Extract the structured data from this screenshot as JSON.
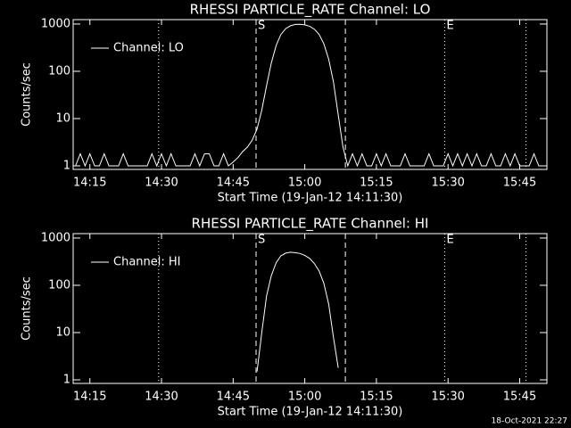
{
  "chart_data": [
    {
      "type": "line",
      "title": "RHESSI PARTICLE_RATE Channel: LO",
      "xlabel": "Start Time (19-Jan-12 14:11:30)",
      "ylabel": "Counts/sec",
      "log_y": true,
      "legend": "upper left",
      "xlim": [
        851.5,
        950.7
      ],
      "ylim": [
        0.84,
        1240
      ],
      "xticks": [
        {
          "value": 855,
          "label": "14:15"
        },
        {
          "value": 870,
          "label": "14:30"
        },
        {
          "value": 885,
          "label": "14:45"
        },
        {
          "value": 900,
          "label": "15:00"
        },
        {
          "value": 915,
          "label": "15:15"
        },
        {
          "value": 930,
          "label": "15:30"
        },
        {
          "value": 945,
          "label": "15:45"
        }
      ],
      "yticks": [
        1,
        10,
        100,
        1000
      ],
      "annotations": [
        {
          "x": 869.4,
          "style": "dotted"
        },
        {
          "x": 889.8,
          "style": "dashed",
          "label": "S"
        },
        {
          "x": 908.5,
          "style": "dashed"
        },
        {
          "x": 929.3,
          "style": "dotted",
          "label": "E"
        },
        {
          "x": 946.3,
          "style": "dotted"
        }
      ],
      "x": [
        852,
        853,
        854,
        855,
        856,
        857,
        858,
        859,
        860,
        861,
        862,
        863,
        864,
        865,
        866,
        867,
        868,
        869,
        870,
        871,
        872,
        873,
        874,
        875,
        876,
        877,
        878,
        879,
        880,
        881,
        882,
        883,
        884,
        885,
        886,
        887,
        888,
        889,
        890,
        891,
        892,
        893,
        894,
        895,
        896,
        897,
        898,
        899,
        900,
        901,
        902,
        903,
        904,
        905,
        906,
        907,
        908,
        909,
        910,
        911,
        912,
        913,
        914,
        915,
        916,
        917,
        918,
        919,
        920,
        921,
        922,
        923,
        924,
        925,
        926,
        927,
        928,
        929,
        930,
        931,
        932,
        933,
        934,
        935,
        936,
        937,
        938,
        939,
        940,
        941,
        942,
        943,
        944,
        945,
        946,
        947,
        948,
        949,
        950
      ],
      "series": [
        {
          "name": "Channel: LO",
          "color": "#ffffff",
          "values": [
            1,
            1.8,
            1,
            1.8,
            1,
            1,
            1.8,
            1,
            1,
            1,
            1.8,
            1,
            1,
            1,
            1,
            1,
            1.8,
            1,
            1.8,
            1,
            1.8,
            1,
            1,
            1,
            1,
            1.8,
            1,
            1.8,
            1.8,
            1,
            1,
            1.8,
            1,
            1.2,
            1.5,
            2,
            2.5,
            3.5,
            6,
            15,
            50,
            150,
            350,
            600,
            800,
            920,
            980,
            990,
            960,
            900,
            780,
            600,
            380,
            180,
            60,
            12,
            2.5,
            1,
            1.8,
            1,
            1.8,
            1,
            1,
            1.8,
            1,
            1.8,
            1,
            1,
            1,
            1.8,
            1,
            1,
            1,
            1,
            1.8,
            1,
            1,
            1,
            1.8,
            1,
            1.8,
            1,
            1.8,
            1,
            1.8,
            1,
            1,
            1.8,
            1,
            1,
            1.8,
            1,
            1.8,
            1,
            1,
            1,
            1.8,
            1,
            1
          ]
        }
      ]
    },
    {
      "type": "line",
      "title": "RHESSI PARTICLE_RATE Channel: HI",
      "xlabel": "Start Time (19-Jan-12 14:11:30)",
      "ylabel": "Counts/sec",
      "log_y": true,
      "legend": "upper left",
      "xlim": [
        851.5,
        950.7
      ],
      "ylim": [
        0.84,
        1240
      ],
      "xticks": [
        {
          "value": 855,
          "label": "14:15"
        },
        {
          "value": 870,
          "label": "14:30"
        },
        {
          "value": 885,
          "label": "14:45"
        },
        {
          "value": 900,
          "label": "15:00"
        },
        {
          "value": 915,
          "label": "15:15"
        },
        {
          "value": 930,
          "label": "15:30"
        },
        {
          "value": 945,
          "label": "15:45"
        }
      ],
      "yticks": [
        1,
        10,
        100,
        1000
      ],
      "annotations": [
        {
          "x": 869.4,
          "style": "dotted"
        },
        {
          "x": 889.8,
          "style": "dashed",
          "label": "S"
        },
        {
          "x": 908.5,
          "style": "dashed"
        },
        {
          "x": 929.3,
          "style": "dotted",
          "label": "E"
        },
        {
          "x": 946.3,
          "style": "dotted"
        }
      ],
      "x": [
        890,
        891,
        892,
        893,
        894,
        895,
        896,
        897,
        898,
        899,
        900,
        901,
        902,
        903,
        904,
        905,
        906,
        907
      ],
      "series": [
        {
          "name": "Channel: HI",
          "color": "#ffffff",
          "values": [
            1.5,
            10,
            60,
            160,
            300,
            420,
            480,
            500,
            490,
            470,
            430,
            370,
            290,
            200,
            110,
            40,
            8,
            1.8
          ]
        }
      ]
    }
  ],
  "footer": "18-Oct-2021 22:27"
}
